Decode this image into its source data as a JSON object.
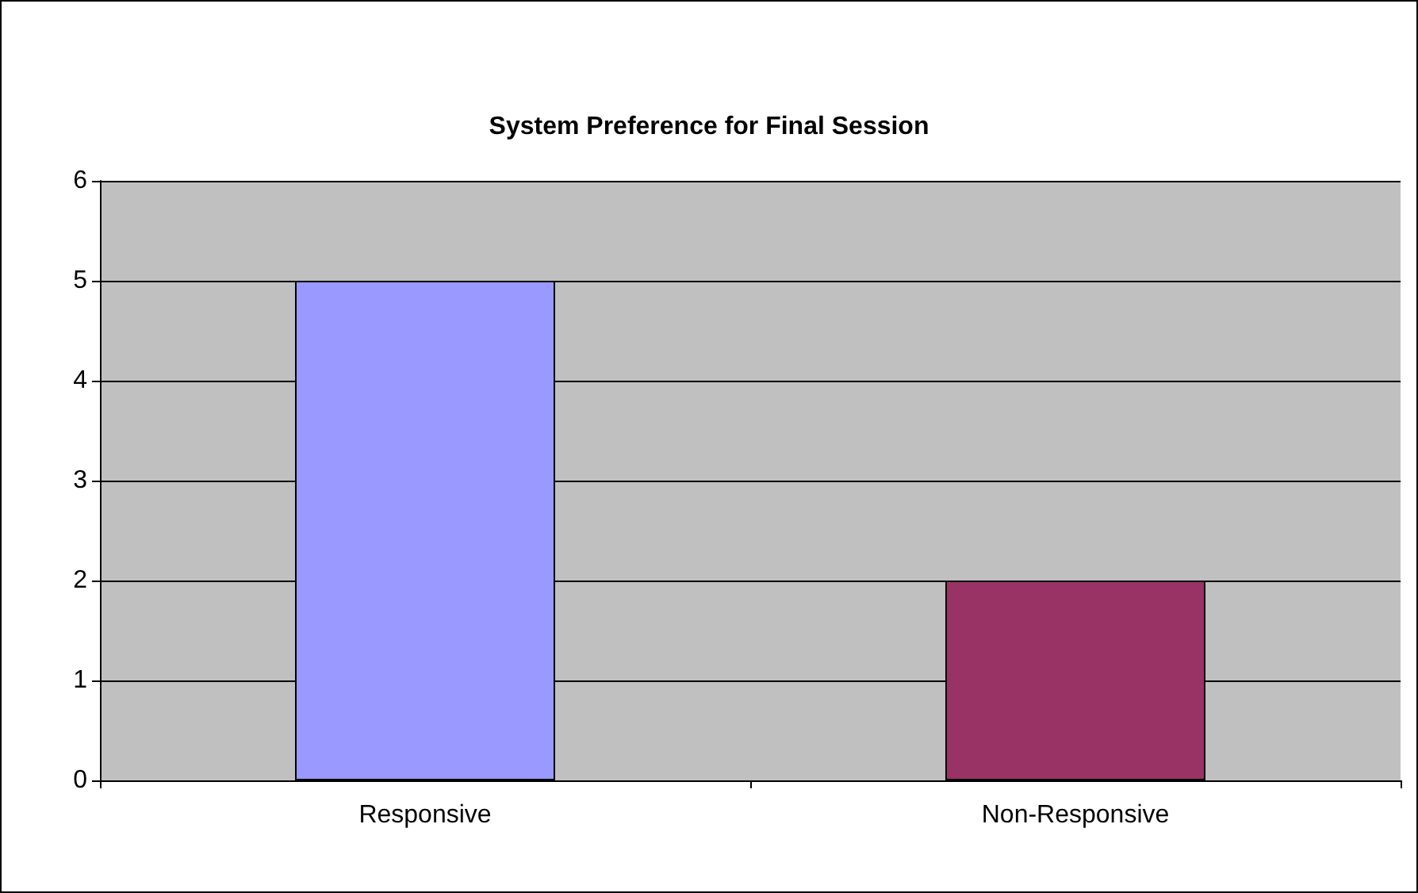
{
  "chart_data": {
    "type": "bar",
    "title": "System Preference for Final Session",
    "categories": [
      "Responsive",
      "Non-Responsive"
    ],
    "values": [
      5,
      2
    ],
    "colors": [
      "#9999ff",
      "#993366"
    ],
    "ylim": [
      0,
      6
    ],
    "yticks": [
      0,
      1,
      2,
      3,
      4,
      5,
      6
    ],
    "grid": "y"
  }
}
